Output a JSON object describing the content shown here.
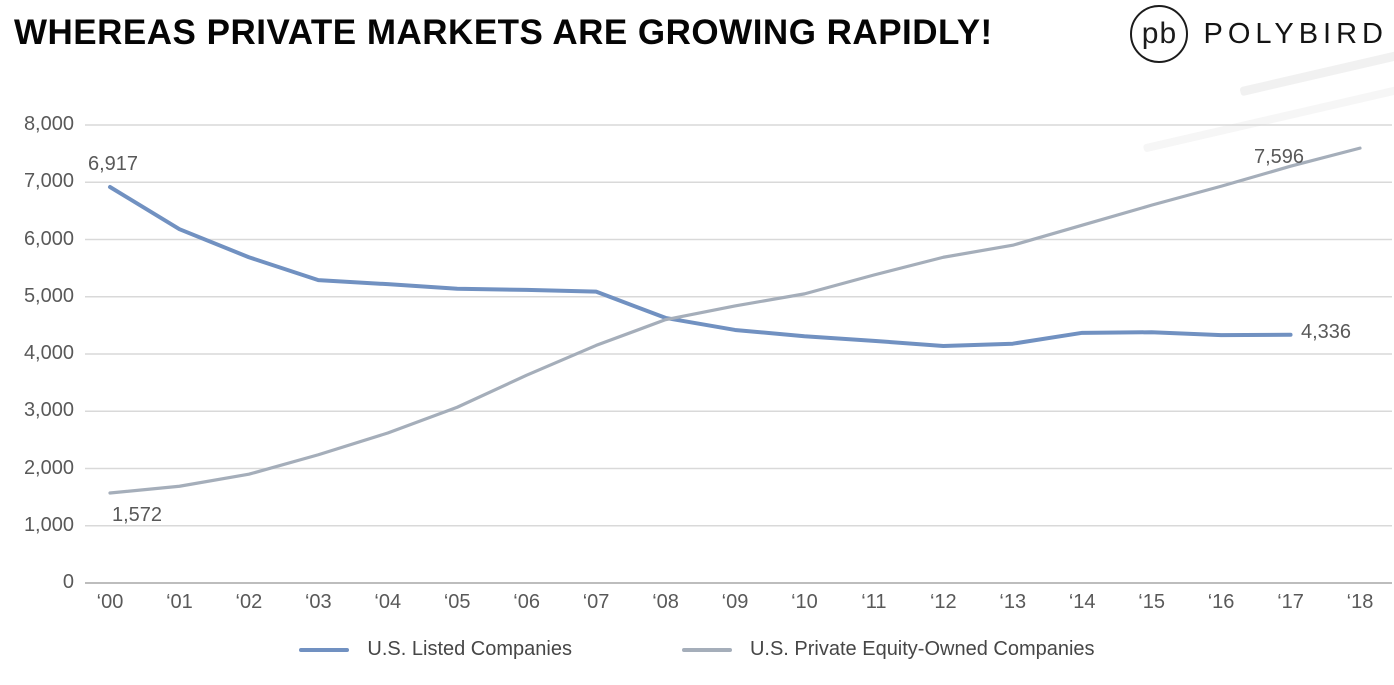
{
  "header": {
    "title": "WHEREAS PRIVATE MARKETS ARE GROWING RAPIDLY!",
    "logo": {
      "monogram": "pb",
      "wordmark": "POLYBIRD"
    }
  },
  "chart_data": {
    "type": "line",
    "title": "",
    "xlabel": "",
    "ylabel": "",
    "categories": [
      "‘00",
      "‘01",
      "‘02",
      "‘03",
      "‘04",
      "‘05",
      "‘06",
      "‘07",
      "‘08",
      "‘09",
      "‘10",
      "‘11",
      "‘12",
      "‘13",
      "‘14",
      "‘15",
      "‘16",
      "‘17",
      "‘18"
    ],
    "series": [
      {
        "name": "U.S. Listed Companies",
        "color": "#7191c1",
        "values": [
          6917,
          6180,
          5690,
          5290,
          5220,
          5140,
          5120,
          5090,
          4630,
          4420,
          4310,
          4230,
          4140,
          4180,
          4370,
          4380,
          4330,
          4336
        ]
      },
      {
        "name": "U.S. Private Equity-Owned Companies",
        "color": "#a5aeba",
        "values": [
          1572,
          1690,
          1900,
          2240,
          2620,
          3070,
          3630,
          4150,
          4600,
          4840,
          5050,
          5380,
          5690,
          5900,
          6250,
          6600,
          6930,
          7280,
          7596
        ]
      }
    ],
    "ylim": [
      0,
      8000
    ],
    "y_tick_step": 1000,
    "y_ticks": [
      "8,000",
      "7,000",
      "6,000",
      "5,000",
      "4,000",
      "3,000",
      "2,000",
      "1,000",
      "0"
    ],
    "grid": true,
    "legend_position": "bottom",
    "annotations": [
      {
        "text": "6,917",
        "value": 6917,
        "series": "U.S. Listed Companies",
        "category": "‘00"
      },
      {
        "text": "1,572",
        "value": 1572,
        "series": "U.S. Private Equity-Owned Companies",
        "category": "‘00"
      },
      {
        "text": "7,596",
        "value": 7596,
        "series": "U.S. Private Equity-Owned Companies",
        "category": "‘18"
      },
      {
        "text": "4,336",
        "value": 4336,
        "series": "U.S. Listed Companies",
        "category": "‘17"
      }
    ]
  }
}
